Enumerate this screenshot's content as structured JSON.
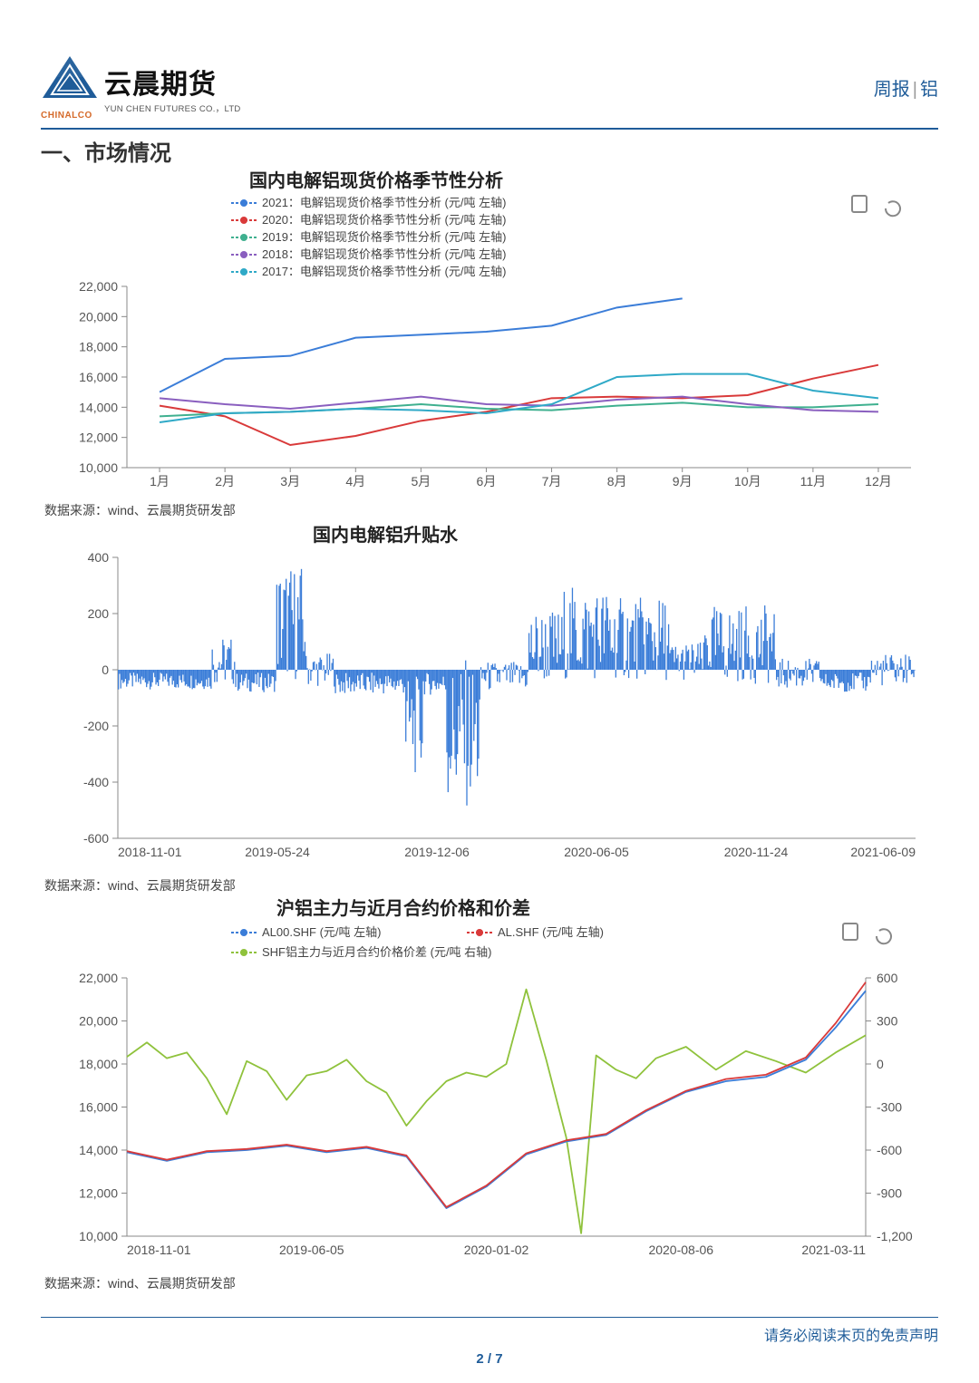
{
  "header": {
    "logo_cn": "云晨期货",
    "logo_en": "YUN CHEN FUTURES CO.，LTD",
    "chinalco": "CHINALCO",
    "top_right_a": "周报",
    "top_right_b": "铝"
  },
  "section_title": "一、市场情况",
  "source_line": "数据来源：wind、云晨期货研发部",
  "footer": {
    "disclaimer": "请务必阅读末页的免责声明",
    "page_num": "2 / 7"
  },
  "chart1": {
    "type": "line",
    "title": "国内电解铝现货价格季节性分析",
    "title_fontsize": 20,
    "background_color": "#ffffff",
    "axis_color": "#888888",
    "tick_fontsize": 14,
    "x_categories": [
      "1月",
      "2月",
      "3月",
      "4月",
      "5月",
      "6月",
      "7月",
      "8月",
      "9月",
      "10月",
      "11月",
      "12月"
    ],
    "ylim": [
      10000,
      22000
    ],
    "ytick_step": 2000,
    "legend": [
      {
        "label": "2021：电解铝现货价格季节性分析 (元/吨 左轴)",
        "color": "#3b7dd8",
        "marker": "circle"
      },
      {
        "label": "2020：电解铝现货价格季节性分析 (元/吨 左轴)",
        "color": "#d93a3a",
        "marker": "circle"
      },
      {
        "label": "2019：电解铝现货价格季节性分析 (元/吨 左轴)",
        "color": "#3fb08f",
        "marker": "circle"
      },
      {
        "label": "2018：电解铝现货价格季节性分析 (元/吨 左轴)",
        "color": "#8a5fbf",
        "marker": "circle"
      },
      {
        "label": "2017：电解铝现货价格季节性分析 (元/吨 左轴)",
        "color": "#2fa9c7",
        "marker": "circle"
      }
    ],
    "line_width": 2,
    "series": {
      "s2021": {
        "color": "#3b7dd8",
        "values": [
          15000,
          17200,
          17400,
          18600,
          18800,
          19000,
          19400,
          20600,
          21200,
          null,
          null,
          null
        ]
      },
      "s2020": {
        "color": "#d93a3a",
        "values": [
          14100,
          13400,
          11500,
          12100,
          13100,
          13700,
          14600,
          14700,
          14600,
          14800,
          15900,
          16800
        ]
      },
      "s2019": {
        "color": "#3fb08f",
        "values": [
          13400,
          13600,
          13700,
          13900,
          14200,
          13900,
          13800,
          14100,
          14300,
          14000,
          14000,
          14200
        ]
      },
      "s2018": {
        "color": "#8a5fbf",
        "values": [
          14600,
          14200,
          13900,
          14300,
          14700,
          14200,
          14100,
          14500,
          14700,
          14200,
          13800,
          13700
        ]
      },
      "s2017": {
        "color": "#2fa9c7",
        "values": [
          13000,
          13600,
          13700,
          13900,
          13800,
          13600,
          14200,
          16000,
          16200,
          16200,
          15100,
          14600
        ]
      }
    },
    "toolbar_icons": [
      "save-icon",
      "refresh-icon"
    ]
  },
  "chart2": {
    "type": "bar-dense",
    "title": "国内电解铝升贴水",
    "title_fontsize": 20,
    "background_color": "#ffffff",
    "axis_color": "#888888",
    "tick_fontsize": 14,
    "bar_color": "#3b7dd8",
    "ylim": [
      -600,
      400
    ],
    "ytick_step": 200,
    "x_ticks": [
      "2018-11-01",
      "2019-05-24",
      "2019-12-06",
      "2020-06-05",
      "2020-11-24",
      "2021-06-09"
    ],
    "n_bars": 680,
    "values_envelope": {
      "segments": [
        {
          "from": 0,
          "to": 80,
          "lo": -70,
          "hi": -10
        },
        {
          "from": 80,
          "to": 100,
          "lo": -60,
          "hi": 120
        },
        {
          "from": 100,
          "to": 135,
          "lo": -80,
          "hi": -10
        },
        {
          "from": 135,
          "to": 160,
          "lo": -40,
          "hi": 380
        },
        {
          "from": 160,
          "to": 185,
          "lo": -60,
          "hi": 60
        },
        {
          "from": 185,
          "to": 245,
          "lo": -90,
          "hi": -10
        },
        {
          "from": 245,
          "to": 260,
          "lo": -380,
          "hi": -20
        },
        {
          "from": 260,
          "to": 280,
          "lo": -90,
          "hi": -10
        },
        {
          "from": 280,
          "to": 310,
          "lo": -500,
          "hi": 40
        },
        {
          "from": 310,
          "to": 350,
          "lo": -80,
          "hi": 30
        },
        {
          "from": 350,
          "to": 380,
          "lo": -60,
          "hi": 220
        },
        {
          "from": 380,
          "to": 420,
          "lo": -40,
          "hi": 300
        },
        {
          "from": 420,
          "to": 470,
          "lo": -40,
          "hi": 260
        },
        {
          "from": 470,
          "to": 500,
          "lo": -40,
          "hi": 100
        },
        {
          "from": 500,
          "to": 560,
          "lo": -50,
          "hi": 230
        },
        {
          "from": 560,
          "to": 600,
          "lo": -70,
          "hi": 40
        },
        {
          "from": 600,
          "to": 640,
          "lo": -80,
          "hi": -10
        },
        {
          "from": 640,
          "to": 680,
          "lo": -60,
          "hi": 60
        }
      ]
    }
  },
  "chart3": {
    "type": "line-dual-axis",
    "title": "沪铝主力与近月合约价格和价差",
    "title_fontsize": 20,
    "background_color": "#ffffff",
    "axis_color": "#888888",
    "tick_fontsize": 14,
    "legend": [
      {
        "label": "AL00.SHF (元/吨 左轴)",
        "color": "#3b7dd8",
        "marker": "circle"
      },
      {
        "label": "AL.SHF (元/吨 左轴)",
        "color": "#d93a3a",
        "marker": "circle"
      },
      {
        "label": "SHF铝主力与近月合约价格价差 (元/吨 右轴)",
        "color": "#8fc23c",
        "marker": "circle"
      }
    ],
    "line_width": 1.8,
    "left_ylim": [
      10000,
      22000
    ],
    "left_ytick_step": 2000,
    "right_ylim": [
      -1200,
      600
    ],
    "right_ytick_step": 300,
    "x_ticks": [
      "2018-11-01",
      "2019-06-05",
      "2020-01-02",
      "2020-08-06",
      "2021-03-11"
    ],
    "series": {
      "al00": {
        "color": "#3b7dd8",
        "axis": "left",
        "points": [
          [
            0,
            13900
          ],
          [
            40,
            13500
          ],
          [
            80,
            13900
          ],
          [
            120,
            14000
          ],
          [
            160,
            14200
          ],
          [
            200,
            13900
          ],
          [
            240,
            14100
          ],
          [
            280,
            13700
          ],
          [
            320,
            11300
          ],
          [
            360,
            12300
          ],
          [
            400,
            13800
          ],
          [
            440,
            14400
          ],
          [
            480,
            14700
          ],
          [
            520,
            15800
          ],
          [
            560,
            16700
          ],
          [
            600,
            17200
          ],
          [
            640,
            17400
          ],
          [
            680,
            18200
          ],
          [
            710,
            19700
          ],
          [
            740,
            21400
          ]
        ]
      },
      "al": {
        "color": "#d93a3a",
        "axis": "left",
        "points": [
          [
            0,
            13950
          ],
          [
            40,
            13550
          ],
          [
            80,
            13950
          ],
          [
            120,
            14050
          ],
          [
            160,
            14250
          ],
          [
            200,
            13950
          ],
          [
            240,
            14150
          ],
          [
            280,
            13750
          ],
          [
            320,
            11350
          ],
          [
            360,
            12350
          ],
          [
            400,
            13850
          ],
          [
            440,
            14450
          ],
          [
            480,
            14750
          ],
          [
            520,
            15850
          ],
          [
            560,
            16750
          ],
          [
            600,
            17300
          ],
          [
            640,
            17500
          ],
          [
            680,
            18300
          ],
          [
            710,
            19900
          ],
          [
            740,
            21800
          ]
        ]
      },
      "spread": {
        "color": "#8fc23c",
        "axis": "right",
        "points": [
          [
            0,
            50
          ],
          [
            20,
            150
          ],
          [
            40,
            40
          ],
          [
            60,
            80
          ],
          [
            80,
            -100
          ],
          [
            100,
            -350
          ],
          [
            120,
            20
          ],
          [
            140,
            -50
          ],
          [
            160,
            -250
          ],
          [
            180,
            -80
          ],
          [
            200,
            -50
          ],
          [
            220,
            30
          ],
          [
            240,
            -120
          ],
          [
            260,
            -200
          ],
          [
            280,
            -430
          ],
          [
            300,
            -260
          ],
          [
            320,
            -120
          ],
          [
            340,
            -60
          ],
          [
            360,
            -90
          ],
          [
            380,
            0
          ],
          [
            400,
            520
          ],
          [
            420,
            30
          ],
          [
            440,
            -510
          ],
          [
            455,
            -1180
          ],
          [
            470,
            60
          ],
          [
            490,
            -40
          ],
          [
            510,
            -100
          ],
          [
            530,
            40
          ],
          [
            560,
            120
          ],
          [
            590,
            -40
          ],
          [
            620,
            90
          ],
          [
            650,
            20
          ],
          [
            680,
            -60
          ],
          [
            710,
            80
          ],
          [
            740,
            200
          ]
        ]
      }
    },
    "toolbar_icons": [
      "save-icon",
      "refresh-icon"
    ]
  }
}
